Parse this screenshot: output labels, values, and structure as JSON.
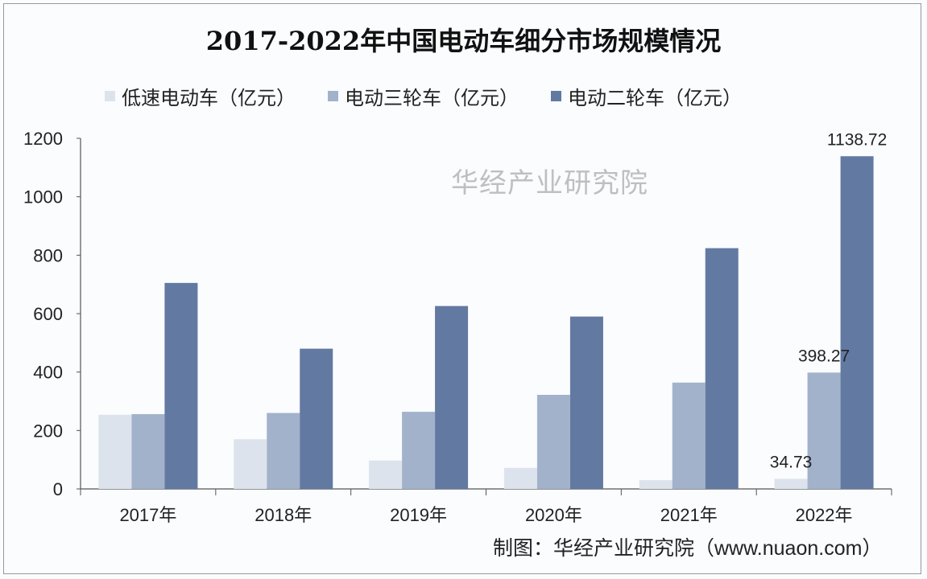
{
  "chart_data": {
    "type": "bar",
    "title": "2017-2022年中国电动车细分市场规模情况",
    "categories": [
      "2017年",
      "2018年",
      "2019年",
      "2020年",
      "2021年",
      "2022年"
    ],
    "series": [
      {
        "name": "低速电动车（亿元）",
        "color": "#dde3ec",
        "values": [
          254,
          170,
          97,
          72,
          30,
          34.73
        ]
      },
      {
        "name": "电动三轮车（亿元）",
        "color": "#a3b2cb",
        "values": [
          256,
          260,
          264,
          322,
          364,
          398.27
        ]
      },
      {
        "name": "电动二轮车（亿元）",
        "color": "#6279a2",
        "values": [
          705,
          480,
          626,
          590,
          824,
          1138.72
        ]
      }
    ],
    "data_labels": [
      {
        "series": 0,
        "category": 5,
        "text": "34.73"
      },
      {
        "series": 1,
        "category": 5,
        "text": "398.27"
      },
      {
        "series": 2,
        "category": 5,
        "text": "1138.72"
      }
    ],
    "yticks": [
      "0",
      "200",
      "400",
      "600",
      "800",
      "1000",
      "1200"
    ],
    "ylim": [
      0,
      1200
    ],
    "xlabel": "",
    "ylabel": "",
    "grid": false,
    "legend": "top"
  },
  "source": "制图：华经产业研究院（www.nuaon.com）",
  "watermark": "华经产业研究院"
}
